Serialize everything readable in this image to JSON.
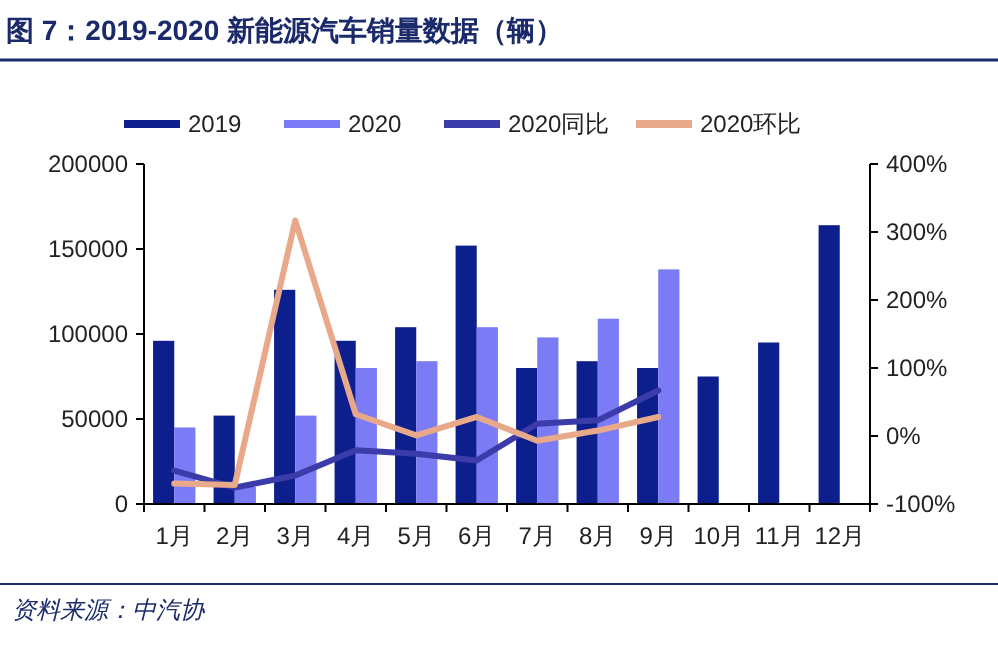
{
  "chart_data": {
    "type": "bar",
    "title": "图 7：2019-2020 新能源汽车销量数据（辆）",
    "categories": [
      "1月",
      "2月",
      "3月",
      "4月",
      "5月",
      "6月",
      "7月",
      "8月",
      "9月",
      "10月",
      "11月",
      "12月"
    ],
    "series": [
      {
        "name": "2019",
        "color": "#0d1f8c",
        "values": [
          96000,
          52000,
          126000,
          96000,
          104000,
          152000,
          80000,
          84000,
          80000,
          75000,
          95000,
          164000
        ]
      },
      {
        "name": "2020",
        "color": "#7b7bf5",
        "values": [
          45000,
          10000,
          52000,
          80000,
          84000,
          104000,
          98000,
          109000,
          138000,
          null,
          null,
          null
        ]
      },
      {
        "name": "2020同比",
        "type": "line",
        "axis": "y2",
        "color": "#3b3baa",
        "values": [
          -51,
          -76,
          -58,
          -21,
          -26,
          -36,
          18,
          23,
          67,
          null,
          null,
          null
        ]
      },
      {
        "name": "2020环比",
        "type": "line",
        "axis": "y2",
        "color": "#e8a98a",
        "values": [
          -70,
          -72,
          317,
          32,
          1,
          28,
          -7,
          8,
          28,
          null,
          null,
          null
        ]
      }
    ],
    "ylim": [
      0,
      200000
    ],
    "yticks": [
      0,
      50000,
      100000,
      150000,
      200000
    ],
    "y2lim": [
      -100,
      400
    ],
    "y2ticks": [
      {
        "value": -100,
        "label": "-100%"
      },
      {
        "value": 0,
        "label": "0%"
      },
      {
        "value": 100,
        "label": "100%"
      },
      {
        "value": 200,
        "label": "200%"
      },
      {
        "value": 300,
        "label": "300%"
      },
      {
        "value": 400,
        "label": "400%"
      }
    ],
    "legend": "top",
    "grid": false,
    "marker": "none",
    "line_style": "solid",
    "annotations": [
      "资料来源：中汽协"
    ]
  }
}
